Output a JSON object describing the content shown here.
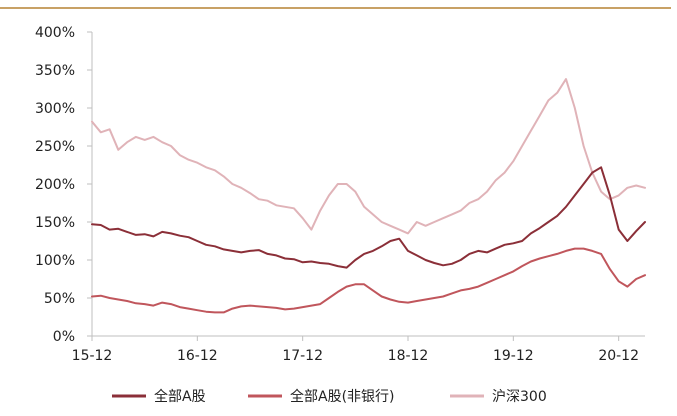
{
  "colors": {
    "top_rule": "#c8a165",
    "axis": "#bfbfbf"
  },
  "chart_data": {
    "type": "line",
    "title": "",
    "xlabel": "",
    "ylabel": "",
    "x_ticks": [
      "15-12",
      "16-12",
      "17-12",
      "18-12",
      "19-12",
      "20-12"
    ],
    "y_ticks": [
      "0%",
      "50%",
      "100%",
      "150%",
      "200%",
      "250%",
      "300%",
      "350%",
      "400%"
    ],
    "ylim": [
      0,
      400
    ],
    "grid": false,
    "legend_position": "bottom",
    "x": [
      0,
      1,
      2,
      3,
      4,
      5,
      6,
      7,
      8,
      9,
      10,
      11,
      12,
      13,
      14,
      15,
      16,
      17,
      18,
      19,
      20,
      21,
      22,
      23,
      24,
      25,
      26,
      27,
      28,
      29,
      30,
      31,
      32,
      33,
      34,
      35,
      36,
      37,
      38,
      39,
      40,
      41,
      42,
      43,
      44,
      45,
      46,
      47,
      48,
      49,
      50,
      51,
      52,
      53,
      54,
      55,
      56,
      57,
      58,
      59,
      60,
      61,
      62,
      63
    ],
    "x_tick_positions": [
      0,
      12,
      24,
      36,
      48,
      60
    ],
    "series": [
      {
        "name": "全部A股",
        "color": "#8b2f38",
        "values": [
          147,
          146,
          140,
          141,
          137,
          133,
          134,
          131,
          137,
          135,
          132,
          130,
          125,
          120,
          118,
          114,
          112,
          110,
          112,
          113,
          108,
          106,
          102,
          101,
          97,
          98,
          96,
          95,
          92,
          90,
          100,
          108,
          112,
          118,
          125,
          128,
          112,
          106,
          100,
          96,
          93,
          95,
          100,
          108,
          112,
          110,
          115,
          120,
          122,
          125,
          135,
          142,
          150,
          158,
          170,
          185,
          200,
          215,
          222,
          185,
          140,
          125,
          138,
          150
        ]
      },
      {
        "name": "全部A股(非银行)",
        "color": "#c0565c",
        "values": [
          52,
          53,
          50,
          48,
          46,
          43,
          42,
          40,
          44,
          42,
          38,
          36,
          34,
          32,
          31,
          31,
          36,
          39,
          40,
          39,
          38,
          37,
          35,
          36,
          38,
          40,
          42,
          50,
          58,
          65,
          68,
          68,
          60,
          52,
          48,
          45,
          44,
          46,
          48,
          50,
          52,
          56,
          60,
          62,
          65,
          70,
          75,
          80,
          85,
          92,
          98,
          102,
          105,
          108,
          112,
          115,
          115,
          112,
          108,
          88,
          72,
          65,
          75,
          80
        ]
      },
      {
        "name": "沪深300",
        "color": "#e0b3b8",
        "values": [
          282,
          268,
          272,
          245,
          255,
          262,
          258,
          262,
          255,
          250,
          238,
          232,
          228,
          222,
          218,
          210,
          200,
          195,
          188,
          180,
          178,
          172,
          170,
          168,
          155,
          140,
          165,
          185,
          200,
          200,
          190,
          170,
          160,
          150,
          145,
          140,
          135,
          150,
          145,
          150,
          155,
          160,
          165,
          175,
          180,
          190,
          205,
          215,
          230,
          250,
          270,
          290,
          310,
          320,
          338,
          300,
          250,
          215,
          190,
          180,
          185,
          195,
          198,
          195
        ]
      }
    ]
  }
}
